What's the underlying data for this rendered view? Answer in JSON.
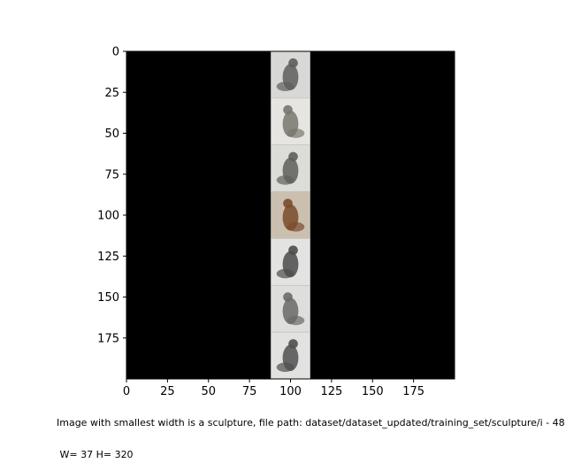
{
  "chart_data": {
    "type": "image",
    "xlim": [
      0,
      200
    ],
    "ylim": [
      200,
      0
    ],
    "x_ticks": [
      0,
      25,
      50,
      75,
      100,
      125,
      150,
      175
    ],
    "y_ticks": [
      0,
      25,
      50,
      75,
      100,
      125,
      150,
      175
    ],
    "background_color": "#000000",
    "image_strip": {
      "x_range": [
        88,
        112
      ],
      "y_range": [
        0,
        200
      ],
      "tiles": 7,
      "subject": "sculpture photographs"
    },
    "caption_lines": [
      "Image with smallest width is a sculpture, file path: dataset/dataset_updated/training_set/sculpture/i - 48",
      " W= 37 H= 320"
    ]
  },
  "colors": {
    "axes_background": "#000000",
    "tile_backgrounds": [
      "#d8d8d6",
      "#e6e5e1",
      "#dcdcd8",
      "#cbbfb0",
      "#e3e3e1",
      "#dededc",
      "#e2e2e0"
    ],
    "tile_subjects": [
      "#5e5e5c",
      "#77776f",
      "#5f5f5b",
      "#7a4a2c",
      "#4b4b4b",
      "#6a6a68",
      "#505050"
    ]
  }
}
